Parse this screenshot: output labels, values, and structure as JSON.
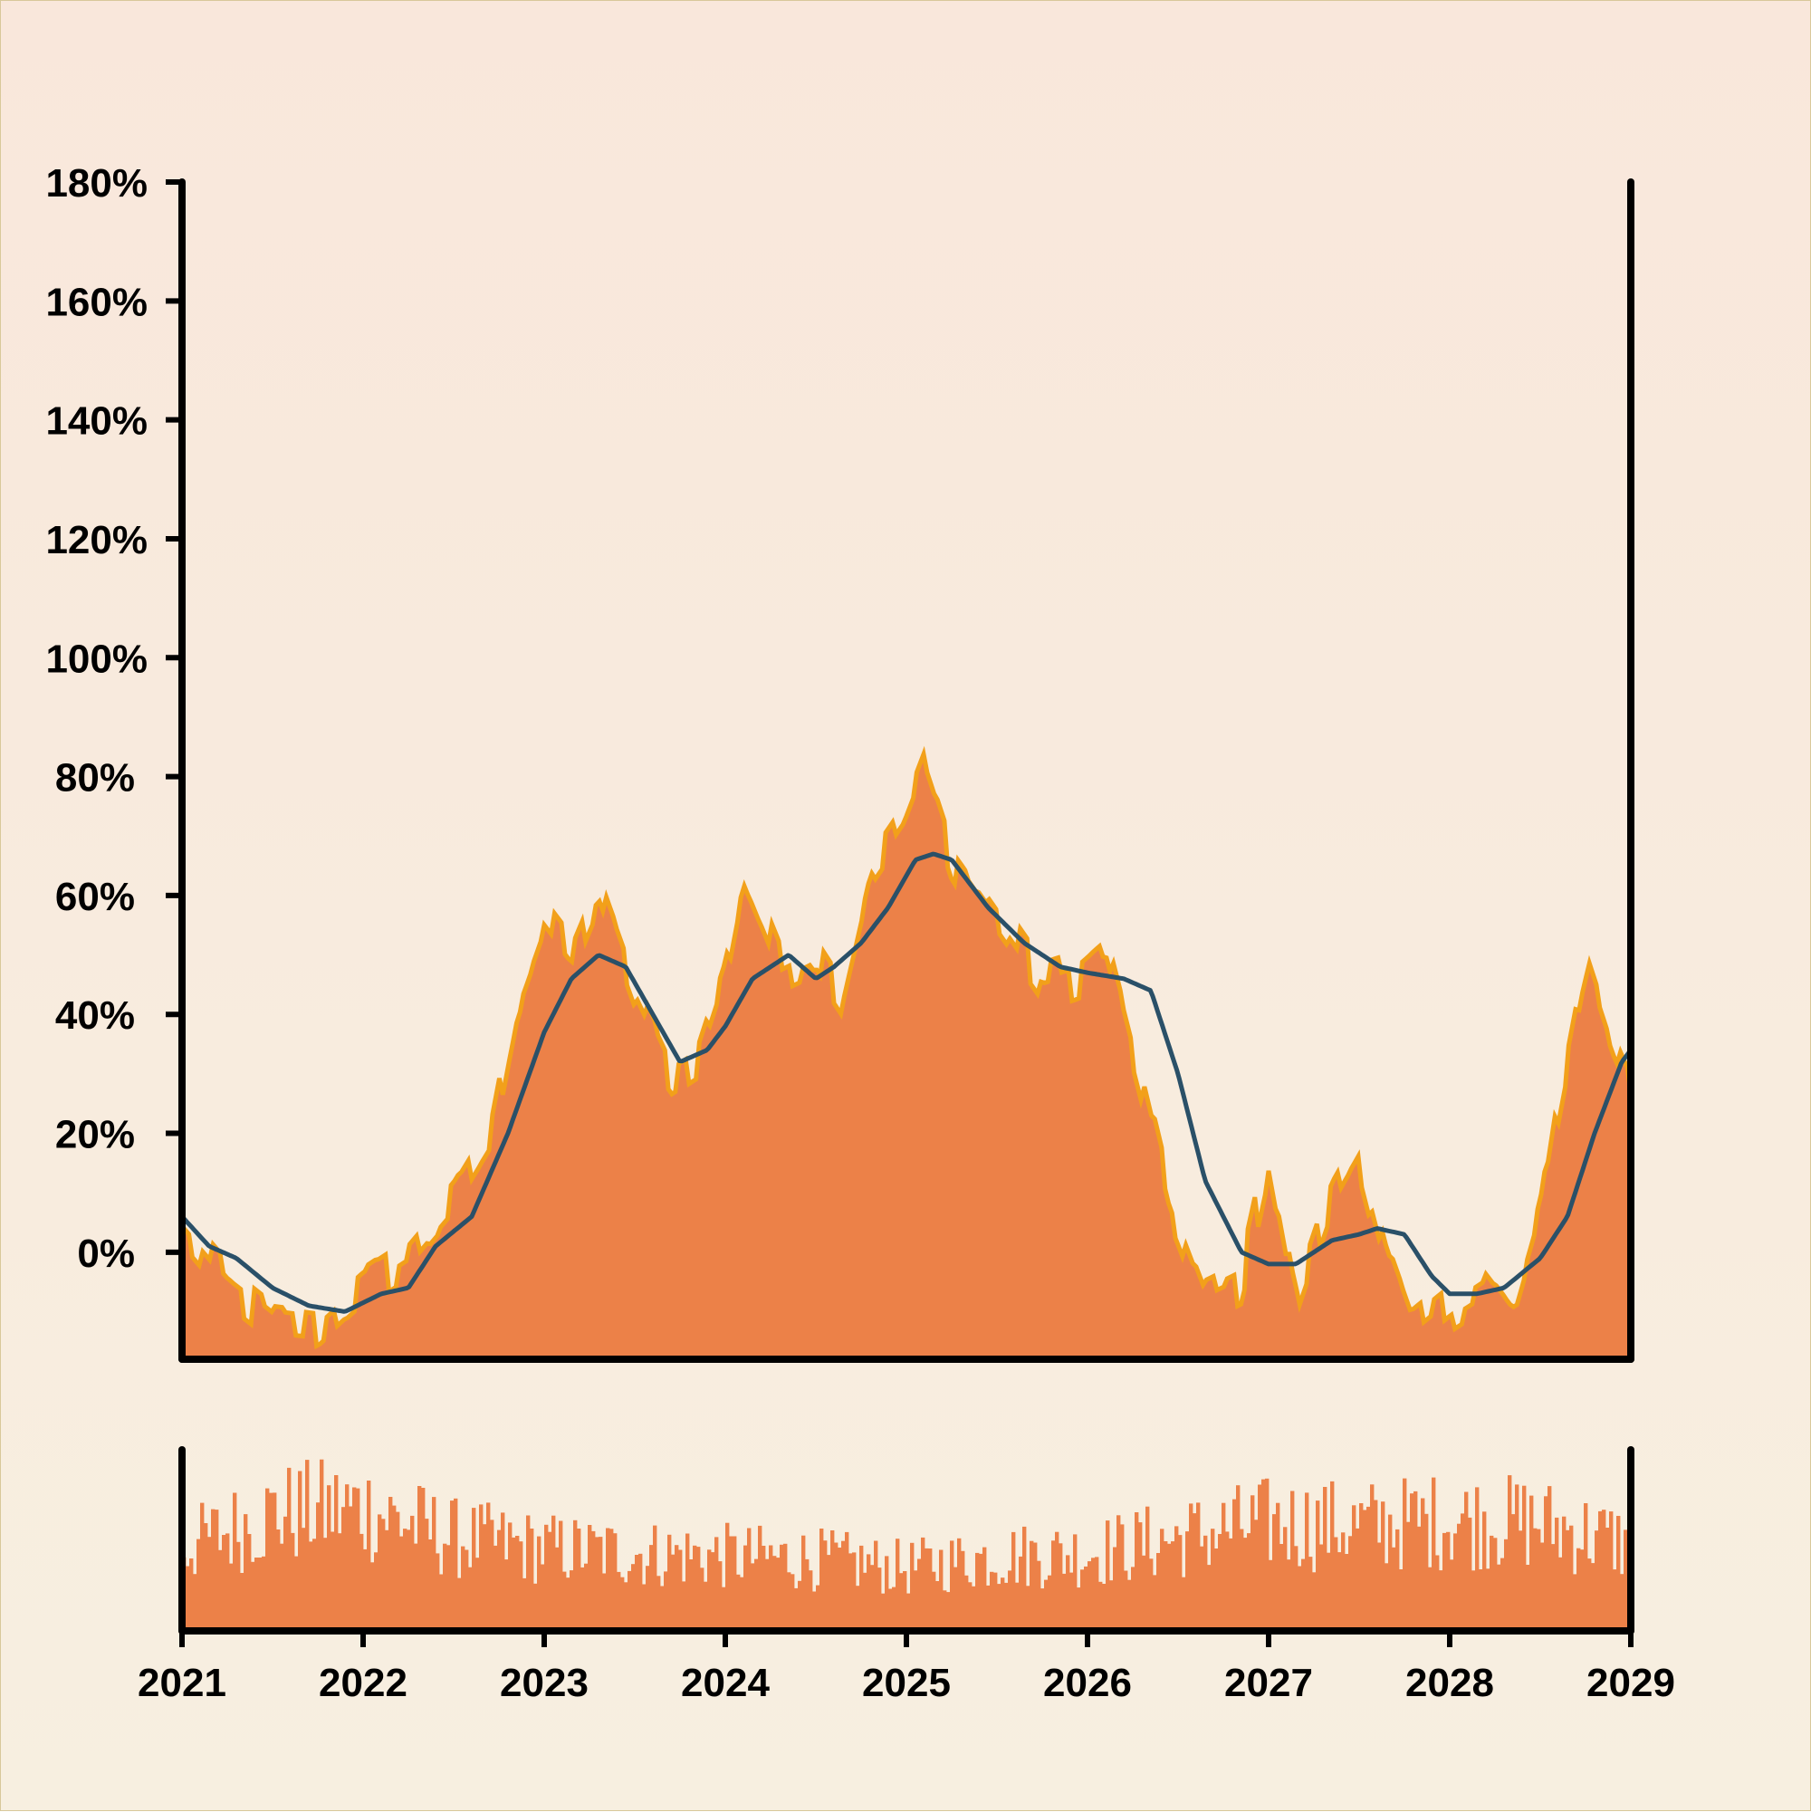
{
  "colors": {
    "background_top": "#f9e7db",
    "background_bottom": "#f7efe0",
    "area_fill": "#ec8148",
    "area_edge": "#f2a01a",
    "smoothed_line": "#2a5068",
    "volume_fill": "#ec8148",
    "axis": "#000000"
  },
  "chart_data": [
    {
      "type": "area",
      "title": "",
      "xlabel": "",
      "ylabel": "",
      "y_unit": "%",
      "xlim": [
        "2021",
        "2029"
      ],
      "ylim": [
        -18,
        180
      ],
      "y_ticks": [
        0,
        20,
        40,
        60,
        80,
        100,
        120,
        140,
        160,
        180
      ],
      "y_tick_labels": [
        "0%",
        "20%",
        "40%",
        "60%",
        "80%",
        "100%",
        "120%",
        "140%",
        "160%",
        "180%"
      ],
      "x_tick_labels": [
        "2021",
        "2022",
        "2023",
        "2024",
        "2025",
        "2026",
        "2027",
        "2028",
        "2029"
      ],
      "grid": false,
      "legend": "none",
      "series": [
        {
          "style": "area",
          "x": [
            2021.0,
            2021.25,
            2021.5,
            2021.75,
            2022.0,
            2022.25,
            2022.5,
            2022.7,
            2022.85,
            2023.0,
            2023.15,
            2023.3,
            2023.5,
            2023.7,
            2023.85,
            2024.0,
            2024.1,
            2024.3,
            2024.5,
            2024.65,
            2024.8,
            2025.0,
            2025.1,
            2025.25,
            2025.5,
            2025.75,
            2025.95,
            2026.1,
            2026.3,
            2026.45,
            2026.65,
            2026.85,
            2027.0,
            2027.15,
            2027.35,
            2027.5,
            2027.65,
            2027.8,
            2028.0,
            2028.2,
            2028.35,
            2028.5,
            2028.6,
            2028.75,
            2028.9,
            2029.0
          ],
          "y": [
            3,
            -6,
            -12,
            -13,
            -6,
            -1,
            8,
            18,
            42,
            55,
            49,
            60,
            43,
            30,
            33,
            47,
            63,
            48,
            51,
            44,
            64,
            73,
            81,
            67,
            56,
            45,
            47,
            51,
            27,
            8,
            -8,
            -5,
            16,
            -9,
            9,
            17,
            -1,
            -14,
            -9,
            -5,
            -11,
            5,
            25,
            49,
            35,
            28
          ]
        },
        {
          "style": "line",
          "x": [
            2021.0,
            2021.15,
            2021.3,
            2021.5,
            2021.7,
            2021.9,
            2022.1,
            2022.25,
            2022.4,
            2022.6,
            2022.8,
            2023.0,
            2023.15,
            2023.3,
            2023.45,
            2023.6,
            2023.75,
            2023.9,
            2024.0,
            2024.15,
            2024.35,
            2024.5,
            2024.6,
            2024.75,
            2024.9,
            2025.05,
            2025.15,
            2025.25,
            2025.45,
            2025.65,
            2025.85,
            2026.0,
            2026.2,
            2026.35,
            2026.5,
            2026.65,
            2026.85,
            2027.0,
            2027.15,
            2027.35,
            2027.5,
            2027.6,
            2027.75,
            2027.9,
            2028.0,
            2028.15,
            2028.3,
            2028.5,
            2028.65,
            2028.8,
            2028.95,
            2029.0
          ],
          "y": [
            6,
            1,
            -1,
            -6,
            -9,
            -10,
            -7,
            -6,
            1,
            6,
            20,
            37,
            46,
            50,
            48,
            40,
            32,
            34,
            38,
            46,
            50,
            46,
            48,
            52,
            58,
            66,
            67,
            66,
            58,
            52,
            48,
            47,
            46,
            44,
            30,
            12,
            0,
            -2,
            -2,
            2,
            3,
            4,
            3,
            -4,
            -7,
            -7,
            -6,
            -1,
            6,
            20,
            32,
            34
          ]
        }
      ]
    },
    {
      "type": "bar",
      "title": "",
      "xlabel": "",
      "ylabel": "",
      "description_values": "volume panel, unlabeled scale",
      "x_envelope": [
        2021.0,
        2021.5,
        2022.0,
        2022.5,
        2023.0,
        2023.5,
        2024.0,
        2024.5,
        2025.0,
        2025.5,
        2026.0,
        2026.5,
        2027.0,
        2027.5,
        2028.0,
        2028.5,
        2029.0
      ],
      "y_envelope": [
        0.55,
        0.78,
        0.82,
        0.62,
        0.55,
        0.52,
        0.5,
        0.48,
        0.42,
        0.5,
        0.52,
        0.62,
        0.72,
        0.7,
        0.74,
        0.72,
        0.58
      ],
      "ylim": [
        0,
        1
      ]
    }
  ]
}
